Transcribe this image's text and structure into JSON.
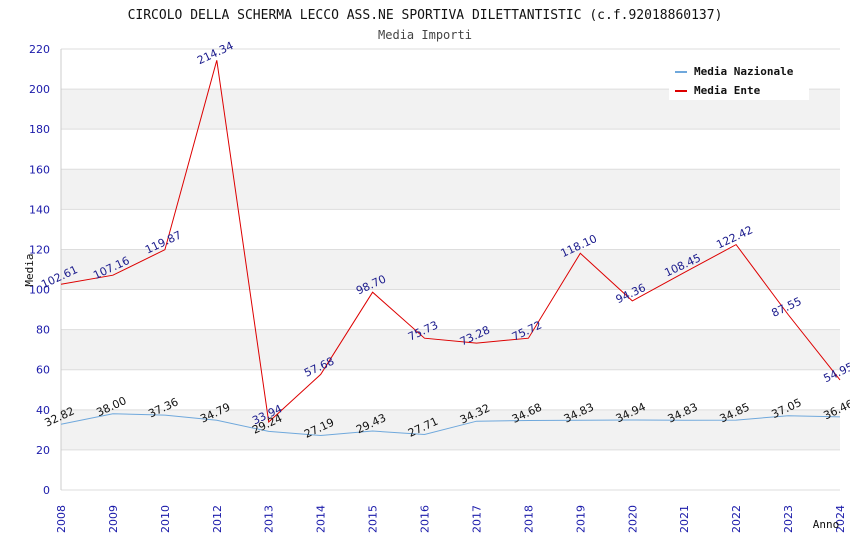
{
  "chart_data": {
    "type": "line",
    "title": "CIRCOLO DELLA SCHERMA LECCO ASS.NE SPORTIVA DILETTANTISTIC (c.f.92018860137)",
    "subtitle": "Media Importi",
    "xlabel": "Anno",
    "ylabel": "Media",
    "ylim": [
      0,
      220
    ],
    "yticks": [
      0,
      20,
      40,
      60,
      80,
      100,
      120,
      140,
      160,
      180,
      200,
      220
    ],
    "categories": [
      "2008",
      "2009",
      "2010",
      "2012",
      "2013",
      "2014",
      "2015",
      "2016",
      "2017",
      "2018",
      "2019",
      "2020",
      "2021",
      "2022",
      "2023",
      "2024"
    ],
    "series": [
      {
        "name": "Media Nazionale",
        "color": "#6fa8dc",
        "label_color": "#111111",
        "values": [
          32.82,
          38.0,
          37.36,
          34.79,
          29.24,
          27.19,
          29.43,
          27.71,
          34.32,
          34.68,
          34.83,
          34.94,
          34.83,
          34.85,
          37.05,
          36.46
        ],
        "labels": [
          "32.82",
          "38.00",
          "37.36",
          "34.79",
          "29.24",
          "27.19",
          "29.43",
          "27.71",
          "34.32",
          "34.68",
          "34.83",
          "34.94",
          "34.83",
          "34.85",
          "37.05",
          "36.46"
        ]
      },
      {
        "name": "Media Ente",
        "color": "#dd0000",
        "label_color": "#1a1a8c",
        "values": [
          102.61,
          107.16,
          119.87,
          214.34,
          33.94,
          57.68,
          98.7,
          75.73,
          73.28,
          75.72,
          118.1,
          94.36,
          108.45,
          122.42,
          87.55,
          54.95
        ],
        "labels": [
          "102.61",
          "107.16",
          "119.87",
          "214.34",
          "33.94",
          "57.68",
          "98.70",
          "75.73",
          "73.28",
          "75.72",
          "118.10",
          "94.36",
          "108.45",
          "122.42",
          "87.55",
          "54.95"
        ]
      }
    ],
    "grid": true,
    "legend": "top-right"
  }
}
